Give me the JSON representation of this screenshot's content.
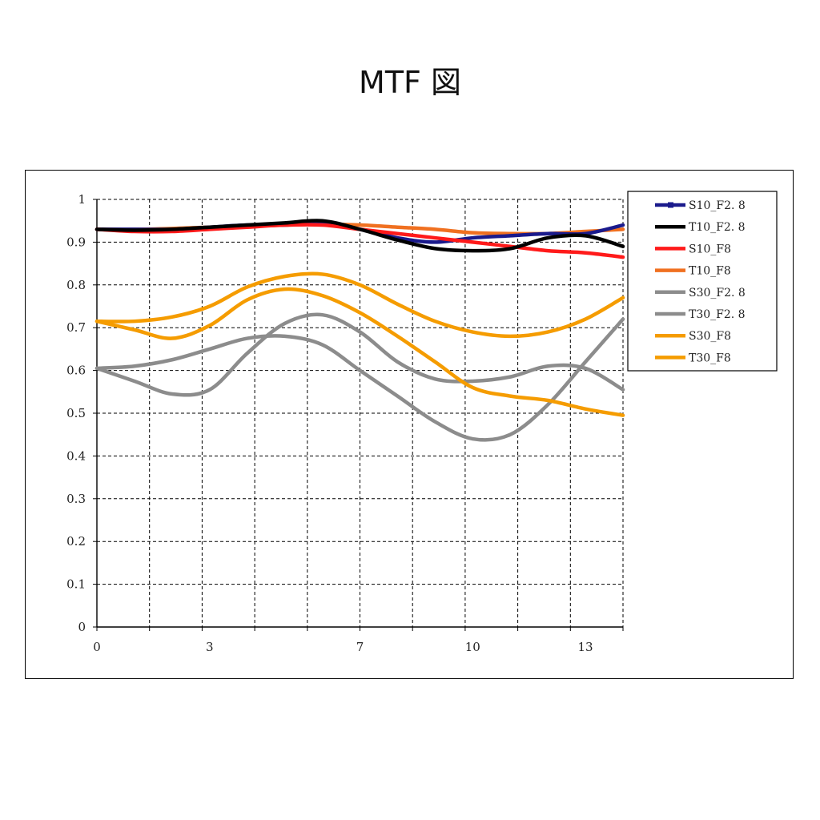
{
  "page": {
    "title": "MTF 図"
  },
  "chart_data": {
    "type": "line",
    "title": "MTF 図",
    "xlabel": "",
    "ylabel": "",
    "xlim": [
      0,
      14
    ],
    "ylim": [
      0,
      1
    ],
    "x_ticks": [
      0,
      3,
      7,
      10,
      13
    ],
    "x_tick_labels": [
      "0",
      "3",
      "7",
      "10",
      "13"
    ],
    "y_ticks": [
      0,
      0.1,
      0.2,
      0.3,
      0.4,
      0.5,
      0.6,
      0.7,
      0.8,
      0.9,
      1
    ],
    "y_tick_labels": [
      "0",
      "0.1",
      "0.2",
      "0.3",
      "0.4",
      "0.5",
      "0.6",
      "0.7",
      "0.8",
      "0.9",
      "1"
    ],
    "grid": true,
    "legend_position": "right",
    "x": [
      0,
      1,
      2,
      3,
      4,
      5,
      6,
      7,
      8,
      9,
      10,
      11,
      12,
      13,
      14
    ],
    "series": [
      {
        "name": "S10_F2. 8",
        "color": "#1a1a8c",
        "marker": true,
        "values": [
          0.93,
          0.93,
          0.93,
          0.935,
          0.94,
          0.94,
          0.945,
          0.93,
          0.91,
          0.9,
          0.91,
          0.915,
          0.92,
          0.92,
          0.94
        ]
      },
      {
        "name": "T10_F2. 8",
        "color": "#000000",
        "marker": false,
        "values": [
          0.93,
          0.928,
          0.93,
          0.935,
          0.94,
          0.945,
          0.95,
          0.93,
          0.905,
          0.885,
          0.88,
          0.885,
          0.91,
          0.915,
          0.89
        ]
      },
      {
        "name": "S10_F8",
        "color": "#ff1a1a",
        "marker": false,
        "values": [
          0.93,
          0.925,
          0.925,
          0.93,
          0.935,
          0.94,
          0.94,
          0.93,
          0.92,
          0.91,
          0.9,
          0.89,
          0.88,
          0.875,
          0.865
        ]
      },
      {
        "name": "T10_F8",
        "color": "#f07020",
        "marker": false,
        "values": [
          0.93,
          0.93,
          0.932,
          0.935,
          0.937,
          0.94,
          0.942,
          0.94,
          0.935,
          0.93,
          0.922,
          0.92,
          0.92,
          0.925,
          0.93
        ]
      },
      {
        "name": "S30_F2. 8",
        "color": "#8c8c8c",
        "marker": false,
        "values": [
          0.605,
          0.61,
          0.625,
          0.65,
          0.675,
          0.68,
          0.66,
          0.6,
          0.54,
          0.48,
          0.44,
          0.45,
          0.52,
          0.62,
          0.72
        ]
      },
      {
        "name": "T30_F2. 8",
        "color": "#8c8c8c",
        "marker": false,
        "values": [
          0.605,
          0.575,
          0.545,
          0.555,
          0.64,
          0.71,
          0.73,
          0.69,
          0.62,
          0.58,
          0.575,
          0.585,
          0.61,
          0.605,
          0.555
        ]
      },
      {
        "name": "S30_F8",
        "color": "#f59c00",
        "marker": false,
        "values": [
          0.715,
          0.715,
          0.725,
          0.75,
          0.795,
          0.82,
          0.825,
          0.8,
          0.755,
          0.715,
          0.69,
          0.68,
          0.69,
          0.72,
          0.77
        ]
      },
      {
        "name": "T30_F8",
        "color": "#f59c00",
        "marker": false,
        "values": [
          0.715,
          0.695,
          0.675,
          0.705,
          0.765,
          0.79,
          0.775,
          0.735,
          0.68,
          0.62,
          0.56,
          0.54,
          0.53,
          0.51,
          0.495
        ]
      }
    ]
  }
}
